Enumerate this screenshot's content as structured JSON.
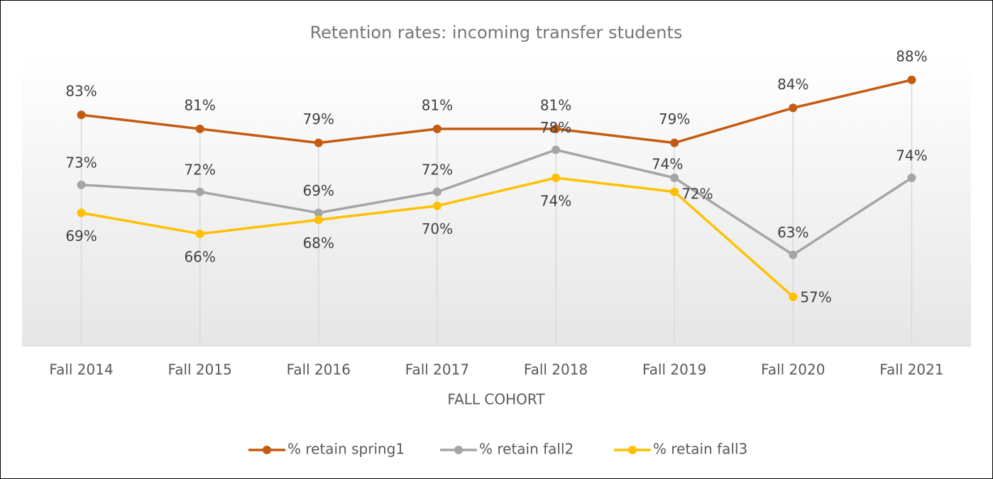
{
  "chart_data": {
    "type": "line",
    "title": "Retention rates: incoming transfer students",
    "x_label": "FALL COHORT",
    "categories": [
      "Fall 2014",
      "Fall 2015",
      "Fall 2016",
      "Fall 2017",
      "Fall 2018",
      "Fall 2019",
      "Fall 2020",
      "Fall 2021"
    ],
    "series": [
      {
        "name": "% retain spring1",
        "color": "#c55a11",
        "values": [
          83,
          81,
          79,
          81,
          81,
          79,
          84,
          88
        ],
        "value_labels": [
          "83%",
          "81%",
          "79%",
          "81%",
          "81%",
          "79%",
          "84%",
          "88%"
        ]
      },
      {
        "name": "% retain fall2",
        "color": "#a5a5a5",
        "values": [
          73,
          72,
          69,
          72,
          78,
          74,
          63,
          74
        ],
        "value_labels": [
          "73%",
          "72%",
          "69%",
          "72%",
          "78%",
          "74%",
          "63%",
          "74%"
        ]
      },
      {
        "name": "% retain fall3",
        "color": "#ffc000",
        "values": [
          69,
          66,
          68,
          70,
          74,
          72,
          57,
          null
        ],
        "value_labels": [
          "69%",
          "66%",
          "68%",
          "70%",
          "74%",
          "72%",
          "57%",
          null
        ]
      }
    ],
    "ylim": [
      50,
      90
    ],
    "legend": "bottom"
  }
}
